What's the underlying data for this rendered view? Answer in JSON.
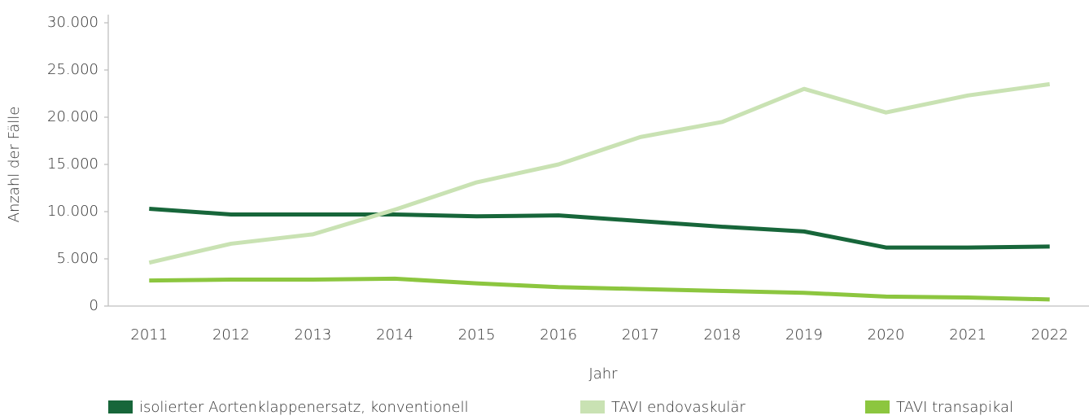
{
  "chart_data": {
    "type": "line",
    "x_label": "Jahr",
    "y_label": "Anzahl der Fälle",
    "categories": [
      "2011",
      "2012",
      "2013",
      "2014",
      "2015",
      "2016",
      "2017",
      "2018",
      "2019",
      "2020",
      "2021",
      "2022"
    ],
    "series": [
      {
        "name": "isolierter Aortenklappenersatz, konventionell",
        "color": "#17663a",
        "values": [
          10300,
          9700,
          9700,
          9700,
          9500,
          9600,
          9000,
          8400,
          7900,
          6200,
          6200,
          6300
        ]
      },
      {
        "name": "TAVI endovaskulär",
        "color": "#c9e2b3",
        "values": [
          4600,
          6600,
          7600,
          10200,
          13100,
          15000,
          17900,
          19500,
          23000,
          20500,
          22300,
          23500
        ]
      },
      {
        "name": "TAVI transapikal",
        "color": "#8cc63f",
        "values": [
          2700,
          2800,
          2800,
          2900,
          2400,
          2000,
          1800,
          1600,
          1400,
          1000,
          900,
          700
        ]
      }
    ],
    "ylim": [
      0,
      30000
    ],
    "yticks": [
      0,
      {
        "value": 5000,
        "label": "5.000"
      },
      {
        "value": 10000,
        "label": "10.000"
      },
      {
        "value": 15000,
        "label": "15.000"
      },
      {
        "value": 20000,
        "label": "20.000"
      },
      {
        "value": 25000,
        "label": "25.000"
      },
      {
        "value": 30000,
        "label": "30.000"
      }
    ],
    "legend": "bottom",
    "grid": false
  }
}
